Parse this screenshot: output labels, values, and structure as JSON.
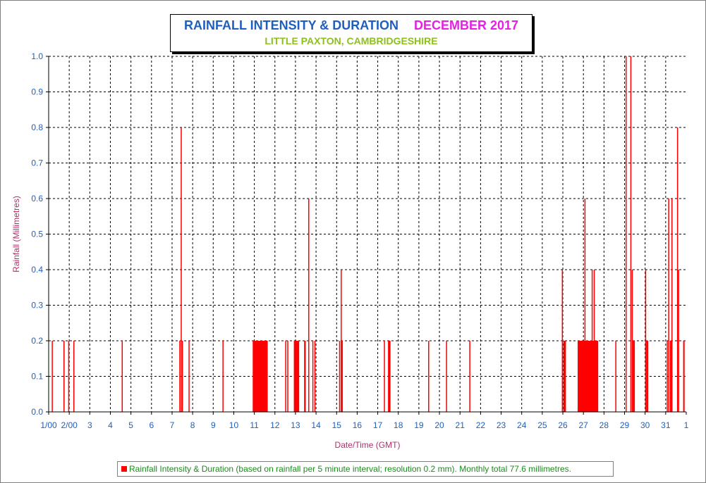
{
  "title": "RAINFALL INTENSITY & DURATION",
  "month_label": "DECEMBER 2017",
  "subtitle": "LITTLE PAXTON, CAMBRIDGESHIRE",
  "legend": "Rainfall Intensity & Duration (based on rainfall per 5 minute interval; resolution 0.2 mm). Monthly total 77.6 millimetres.",
  "colors": {
    "title": "#1f5fbf",
    "month": "#e61ee6",
    "subtitle": "#8fbf1f",
    "bars": "#ff0000",
    "axis_text": "#1f5fbf",
    "axis_title": "#b0306a",
    "legend_text": "#1a8c1a"
  },
  "chart_data": {
    "type": "bar",
    "xlabel": "Date/Time (GMT)",
    "ylabel": "Rainfall (Millimetres)",
    "xlim": [
      1,
      32
    ],
    "ylim": [
      0,
      1.0
    ],
    "yticks": [
      "0.0",
      "0.1",
      "0.2",
      "0.3",
      "0.4",
      "0.5",
      "0.6",
      "0.7",
      "0.8",
      "0.9",
      "1.0"
    ],
    "xtick_labels": [
      "1/00",
      "2/00",
      "3",
      "4",
      "5",
      "6",
      "7",
      "8",
      "9",
      "10",
      "11",
      "12",
      "13",
      "14",
      "15",
      "16",
      "17",
      "18",
      "19",
      "20",
      "21",
      "22",
      "23",
      "24",
      "25",
      "26",
      "27",
      "28",
      "29",
      "30",
      "31",
      "1"
    ],
    "grid": true,
    "series": [
      {
        "name": "Rainfall Intensity & Duration",
        "events": [
          {
            "day": 1.15,
            "mm": 0.2
          },
          {
            "day": 1.72,
            "mm": 0.2
          },
          {
            "day": 1.95,
            "mm": 0.2
          },
          {
            "day": 2.2,
            "mm": 0.2
          },
          {
            "day": 4.55,
            "mm": 0.2
          },
          {
            "day": 7.35,
            "mm": 0.2
          },
          {
            "day": 7.42,
            "mm": 0.8
          },
          {
            "day": 7.48,
            "mm": 0.2
          },
          {
            "day": 7.8,
            "mm": 0.2
          },
          {
            "day": 9.45,
            "mm": 0.2
          },
          {
            "day": 10.92,
            "end": 11.65,
            "mm": 0.2
          },
          {
            "day": 12.5,
            "mm": 0.2
          },
          {
            "day": 12.6,
            "mm": 0.2
          },
          {
            "day": 12.92,
            "end": 13.18,
            "mm": 0.2
          },
          {
            "day": 13.42,
            "end": 13.5,
            "mm": 0.2
          },
          {
            "day": 13.62,
            "mm": 0.6
          },
          {
            "day": 13.82,
            "mm": 0.2
          },
          {
            "day": 13.92,
            "mm": 0.2
          },
          {
            "day": 15.12,
            "mm": 0.2
          },
          {
            "day": 15.2,
            "mm": 0.4
          },
          {
            "day": 15.25,
            "mm": 0.2
          },
          {
            "day": 17.3,
            "mm": 0.2
          },
          {
            "day": 17.5,
            "end": 17.62,
            "mm": 0.2
          },
          {
            "day": 19.45,
            "mm": 0.2
          },
          {
            "day": 20.32,
            "mm": 0.2
          },
          {
            "day": 21.45,
            "mm": 0.2
          },
          {
            "day": 25.95,
            "mm": 0.4
          },
          {
            "day": 26.02,
            "end": 26.15,
            "mm": 0.2
          },
          {
            "day": 26.72,
            "end": 27.72,
            "mm": 0.2
          },
          {
            "day": 27.05,
            "mm": 0.6
          },
          {
            "day": 27.15,
            "mm": 0.2
          },
          {
            "day": 27.4,
            "mm": 0.4
          },
          {
            "day": 27.5,
            "mm": 0.4
          },
          {
            "day": 28.55,
            "mm": 0.2
          },
          {
            "day": 29.05,
            "mm": 1.0
          },
          {
            "day": 29.28,
            "mm": 1.0
          },
          {
            "day": 29.35,
            "mm": 0.4
          },
          {
            "day": 29.4,
            "end": 29.5,
            "mm": 0.2
          },
          {
            "day": 30.0,
            "mm": 0.4
          },
          {
            "day": 30.05,
            "end": 30.15,
            "mm": 0.2
          },
          {
            "day": 31.05,
            "mm": 0.2
          },
          {
            "day": 31.12,
            "mm": 0.6
          },
          {
            "day": 31.2,
            "end": 31.3,
            "mm": 0.2
          },
          {
            "day": 31.28,
            "mm": 0.6
          },
          {
            "day": 31.55,
            "mm": 0.8
          },
          {
            "day": 31.6,
            "mm": 0.4
          },
          {
            "day": 31.85,
            "end": 31.92,
            "mm": 0.2
          }
        ]
      }
    ]
  }
}
